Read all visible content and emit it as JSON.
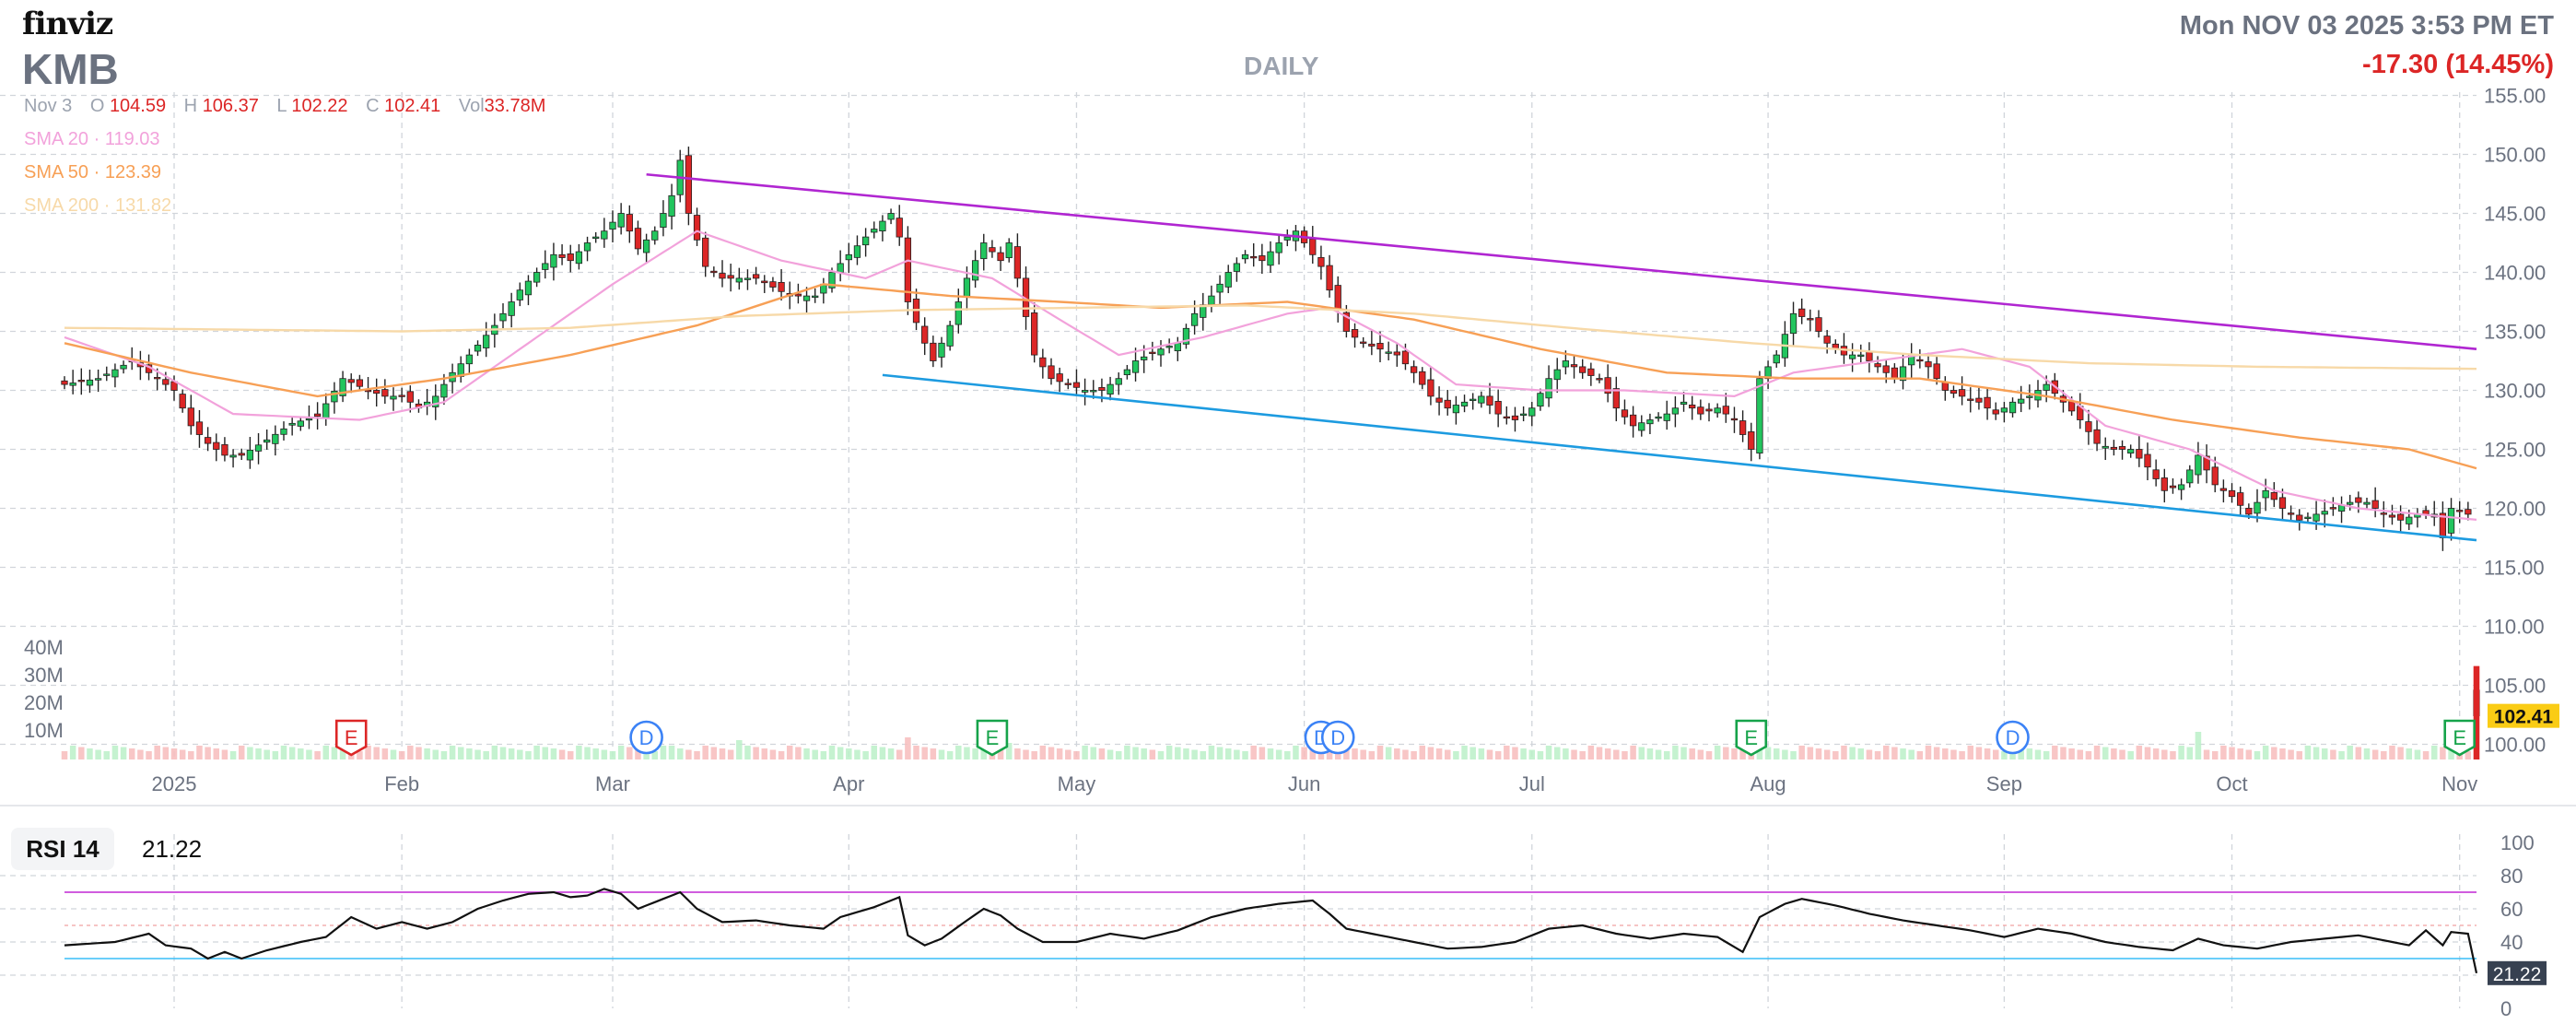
{
  "header": {
    "logo": "finviz",
    "ticker": "KMB",
    "timeframe": "DAILY",
    "datetime": "Mon NOV 03 2025 3:53 PM ET",
    "change": "-17.30 (14.45%)"
  },
  "ohlc": {
    "date": "Nov 3",
    "o_label": "O",
    "o": "104.59",
    "h_label": "H",
    "h": "106.37",
    "l_label": "L",
    "l": "102.22",
    "c_label": "C",
    "c": "102.41",
    "vol_label": "Vol",
    "vol": "33.78M"
  },
  "sma": {
    "sma20": {
      "label": "SMA 20",
      "value": "119.03",
      "color": "#f2a2db"
    },
    "sma50": {
      "label": "SMA 50",
      "value": "123.39",
      "color": "#f7a056"
    },
    "sma200": {
      "label": "SMA 200",
      "value": "131.82",
      "color": "#f7d9a8"
    },
    "sep": "·"
  },
  "rsi": {
    "label": "RSI 14",
    "value": "21.22"
  },
  "colors": {
    "up": "#22c55e",
    "down": "#dc2626",
    "grid": "#d1d5db",
    "axis_text": "#6b7280",
    "trend_upper": "#b026d1",
    "trend_lower": "#1d9be0",
    "last_price_bg": "#facc15",
    "earnings": "#dc2626",
    "earnings_up": "#16a34a",
    "dividend": "#3b82f6"
  },
  "chart_data": {
    "type": "candlestick",
    "price_axis": {
      "ticks": [
        "155.00",
        "150.00",
        "145.00",
        "140.00",
        "135.00",
        "130.00",
        "125.00",
        "120.00",
        "115.00",
        "110.00",
        "105.00",
        "100.00"
      ],
      "range": [
        97.8,
        155
      ]
    },
    "volume_axis": {
      "ticks": [
        "40M",
        "30M",
        "20M",
        "10M"
      ]
    },
    "x_axis": {
      "labels": [
        "2025",
        "Feb",
        "Mar",
        "Apr",
        "May",
        "Jun",
        "Jul",
        "Aug",
        "Sep",
        "Oct",
        "Nov"
      ]
    },
    "last_price": "102.41",
    "start_date": "2024-12-18",
    "anchors": [
      [
        0,
        130.5
      ],
      [
        4,
        131
      ],
      [
        8,
        132.5
      ],
      [
        11,
        131
      ],
      [
        13,
        130
      ],
      [
        15,
        127
      ],
      [
        17,
        125.5
      ],
      [
        19,
        124.5
      ],
      [
        21,
        124.5
      ],
      [
        24,
        125.8
      ],
      [
        27,
        127.2
      ],
      [
        30,
        127.8
      ],
      [
        33,
        131
      ],
      [
        36,
        130
      ],
      [
        38,
        129.5
      ],
      [
        40,
        129.5
      ],
      [
        42,
        128.5
      ],
      [
        44,
        129.5
      ],
      [
        46,
        131.5
      ],
      [
        48,
        133
      ],
      [
        51,
        135.5
      ],
      [
        54,
        138.5
      ],
      [
        56,
        140
      ],
      [
        58,
        141.5
      ],
      [
        60,
        141
      ],
      [
        62,
        142.5
      ],
      [
        64,
        143.5
      ],
      [
        66,
        145
      ],
      [
        68,
        142
      ],
      [
        70,
        143.5
      ],
      [
        72,
        146.5
      ],
      [
        73,
        149.5
      ],
      [
        74,
        145
      ],
      [
        76,
        140.5
      ],
      [
        78,
        139.5
      ],
      [
        82,
        139.5
      ],
      [
        86,
        138
      ],
      [
        89,
        138
      ],
      [
        91,
        140
      ],
      [
        93,
        141.5
      ],
      [
        95,
        143
      ],
      [
        98,
        145
      ],
      [
        99,
        143
      ],
      [
        100,
        137.5
      ],
      [
        102,
        134
      ],
      [
        103,
        132.5
      ],
      [
        105,
        135.5
      ],
      [
        107,
        139.5
      ],
      [
        109,
        142.5
      ],
      [
        111,
        141
      ],
      [
        112,
        142.5
      ],
      [
        113,
        139.5
      ],
      [
        115,
        133
      ],
      [
        117,
        131
      ],
      [
        119,
        130.5
      ],
      [
        121,
        130
      ],
      [
        123,
        130
      ],
      [
        125,
        131
      ],
      [
        127,
        132.5
      ],
      [
        130,
        133.5
      ],
      [
        132,
        134
      ],
      [
        134,
        136.5
      ],
      [
        136,
        138
      ],
      [
        138,
        140
      ],
      [
        140,
        141.5
      ],
      [
        142,
        141
      ],
      [
        144,
        142.5
      ],
      [
        146,
        143.5
      ],
      [
        147,
        142.5
      ],
      [
        149,
        140.5
      ],
      [
        150,
        138.5
      ],
      [
        152,
        135
      ],
      [
        154,
        134
      ],
      [
        156,
        133.5
      ],
      [
        158,
        133
      ],
      [
        160,
        131.5
      ],
      [
        162,
        129.5
      ],
      [
        164,
        128.5
      ],
      [
        166,
        129
      ],
      [
        168,
        129.5
      ],
      [
        170,
        128
      ],
      [
        172,
        127.5
      ],
      [
        174,
        128.5
      ],
      [
        176,
        131
      ],
      [
        178,
        132.5
      ],
      [
        180,
        131.5
      ],
      [
        182,
        131
      ],
      [
        184,
        128.5
      ],
      [
        186,
        127
      ],
      [
        188,
        127.5
      ],
      [
        190,
        128
      ],
      [
        192,
        129
      ],
      [
        194,
        128
      ],
      [
        196,
        128.5
      ],
      [
        198,
        127.5
      ],
      [
        200,
        125
      ],
      [
        201,
        131
      ],
      [
        203,
        133
      ],
      [
        205,
        136.5
      ],
      [
        207,
        136
      ],
      [
        209,
        134
      ],
      [
        211,
        133
      ],
      [
        213,
        133
      ],
      [
        215,
        132
      ],
      [
        217,
        131
      ],
      [
        219,
        133
      ],
      [
        221,
        132
      ],
      [
        223,
        130
      ],
      [
        225,
        129.5
      ],
      [
        227,
        129
      ],
      [
        229,
        128
      ],
      [
        231,
        129
      ],
      [
        233,
        129.5
      ],
      [
        235,
        130.5
      ],
      [
        237,
        129
      ],
      [
        239,
        127.5
      ],
      [
        241,
        125.5
      ],
      [
        243,
        125
      ],
      [
        245,
        125
      ],
      [
        247,
        123.5
      ],
      [
        249,
        121.5
      ],
      [
        251,
        122
      ],
      [
        253,
        124.5
      ],
      [
        255,
        122
      ],
      [
        257,
        121
      ],
      [
        259,
        119.5
      ],
      [
        261,
        121.5
      ],
      [
        263,
        120
      ],
      [
        265,
        119
      ],
      [
        267,
        119.5
      ],
      [
        269,
        120
      ],
      [
        271,
        120.5
      ],
      [
        273,
        120.5
      ],
      [
        275,
        119.5
      ],
      [
        277,
        119
      ],
      [
        279,
        119.5
      ],
      [
        281,
        119.5
      ],
      [
        282,
        117.5
      ],
      [
        283,
        120
      ],
      [
        285,
        119.5
      ],
      [
        286,
        104.59
      ]
    ],
    "last_candle": {
      "date": "Nov 3",
      "open": 104.59,
      "high": 106.37,
      "low": 102.22,
      "close": 102.41
    },
    "sma_sets": {
      "sma20": [
        [
          0,
          134.5
        ],
        [
          10,
          132
        ],
        [
          20,
          128
        ],
        [
          35,
          127.5
        ],
        [
          45,
          129
        ],
        [
          55,
          134
        ],
        [
          65,
          139
        ],
        [
          75,
          143.5
        ],
        [
          85,
          141
        ],
        [
          95,
          139.5
        ],
        [
          100,
          141
        ],
        [
          110,
          139.5
        ],
        [
          118,
          136
        ],
        [
          125,
          133
        ],
        [
          135,
          134.5
        ],
        [
          145,
          136.5
        ],
        [
          150,
          137
        ],
        [
          158,
          134
        ],
        [
          165,
          130.5
        ],
        [
          175,
          130
        ],
        [
          185,
          130
        ],
        [
          198,
          129.5
        ],
        [
          205,
          131.5
        ],
        [
          215,
          132.5
        ],
        [
          225,
          133.5
        ],
        [
          233,
          132
        ],
        [
          242,
          127
        ],
        [
          252,
          125
        ],
        [
          262,
          121.5
        ],
        [
          272,
          120
        ],
        [
          286,
          119.03
        ]
      ],
      "sma50": [
        [
          0,
          134
        ],
        [
          15,
          131.5
        ],
        [
          30,
          129.5
        ],
        [
          45,
          131
        ],
        [
          60,
          133
        ],
        [
          75,
          135.5
        ],
        [
          90,
          139
        ],
        [
          105,
          138
        ],
        [
          118,
          137.5
        ],
        [
          130,
          137
        ],
        [
          145,
          137.5
        ],
        [
          160,
          136
        ],
        [
          175,
          133.5
        ],
        [
          190,
          131.5
        ],
        [
          205,
          131
        ],
        [
          220,
          131
        ],
        [
          235,
          129.5
        ],
        [
          250,
          127.5
        ],
        [
          265,
          126
        ],
        [
          278,
          125
        ],
        [
          286,
          123.39
        ]
      ],
      "sma200": [
        [
          0,
          135.3
        ],
        [
          40,
          135
        ],
        [
          60,
          135.3
        ],
        [
          80,
          136.3
        ],
        [
          100,
          136.8
        ],
        [
          120,
          137
        ],
        [
          140,
          137.2
        ],
        [
          160,
          136.5
        ],
        [
          180,
          135.2
        ],
        [
          200,
          134
        ],
        [
          220,
          133
        ],
        [
          240,
          132.3
        ],
        [
          260,
          132
        ],
        [
          286,
          131.82
        ]
      ]
    },
    "trendlines": [
      {
        "name": "upper",
        "from": [
          69,
          148.3
        ],
        "to": [
          286,
          133.5
        ]
      },
      {
        "name": "lower",
        "from": [
          97,
          131.3
        ],
        "to": [
          286,
          117.3
        ]
      }
    ],
    "volume_baseline_m": 3,
    "volume_spikes": [
      [
        72,
        5
      ],
      [
        80,
        7
      ],
      [
        100,
        8
      ],
      [
        112,
        6
      ],
      [
        150,
        8
      ],
      [
        201,
        10
      ],
      [
        253,
        10
      ],
      [
        286,
        33.78
      ]
    ],
    "events": [
      {
        "type": "E",
        "style": "red",
        "i": 34
      },
      {
        "type": "D",
        "i": 69
      },
      {
        "type": "E",
        "style": "green",
        "i": 110
      },
      {
        "type": "D",
        "i": 149
      },
      {
        "type": "D",
        "i": 151
      },
      {
        "type": "E",
        "style": "green",
        "i": 200
      },
      {
        "type": "D",
        "i": 231
      },
      {
        "type": "E",
        "style": "green",
        "i": 284
      }
    ],
    "rsi": {
      "ticks": [
        "100",
        "80",
        "60",
        "40",
        "20",
        "0"
      ],
      "levels": {
        "overbought": 70,
        "oversold": 30
      },
      "anchors": [
        [
          0,
          38
        ],
        [
          6,
          40
        ],
        [
          10,
          45
        ],
        [
          12,
          38
        ],
        [
          15,
          36
        ],
        [
          17,
          30
        ],
        [
          19,
          34
        ],
        [
          21,
          30
        ],
        [
          24,
          35
        ],
        [
          28,
          40
        ],
        [
          31,
          43
        ],
        [
          34,
          55
        ],
        [
          37,
          48
        ],
        [
          40,
          52
        ],
        [
          43,
          48
        ],
        [
          46,
          52
        ],
        [
          49,
          60
        ],
        [
          52,
          65
        ],
        [
          55,
          69
        ],
        [
          58,
          70
        ],
        [
          60,
          67
        ],
        [
          62,
          68
        ],
        [
          64,
          72
        ],
        [
          66,
          69
        ],
        [
          68,
          60
        ],
        [
          70,
          64
        ],
        [
          73,
          70
        ],
        [
          75,
          60
        ],
        [
          78,
          52
        ],
        [
          82,
          53
        ],
        [
          86,
          50
        ],
        [
          90,
          48
        ],
        [
          92,
          55
        ],
        [
          96,
          61
        ],
        [
          99,
          67
        ],
        [
          100,
          44
        ],
        [
          102,
          38
        ],
        [
          104,
          42
        ],
        [
          107,
          53
        ],
        [
          109,
          60
        ],
        [
          111,
          56
        ],
        [
          113,
          48
        ],
        [
          116,
          40
        ],
        [
          120,
          40
        ],
        [
          124,
          45
        ],
        [
          128,
          42
        ],
        [
          132,
          47
        ],
        [
          136,
          55
        ],
        [
          140,
          60
        ],
        [
          144,
          63
        ],
        [
          148,
          65
        ],
        [
          150,
          57
        ],
        [
          152,
          48
        ],
        [
          156,
          44
        ],
        [
          160,
          40
        ],
        [
          164,
          36
        ],
        [
          168,
          37
        ],
        [
          172,
          40
        ],
        [
          176,
          48
        ],
        [
          180,
          50
        ],
        [
          184,
          45
        ],
        [
          188,
          42
        ],
        [
          192,
          45
        ],
        [
          196,
          43
        ],
        [
          199,
          34
        ],
        [
          201,
          55
        ],
        [
          204,
          63
        ],
        [
          206,
          66
        ],
        [
          210,
          62
        ],
        [
          214,
          57
        ],
        [
          218,
          53
        ],
        [
          222,
          50
        ],
        [
          226,
          47
        ],
        [
          230,
          43
        ],
        [
          234,
          48
        ],
        [
          238,
          45
        ],
        [
          242,
          40
        ],
        [
          246,
          37
        ],
        [
          250,
          35
        ],
        [
          253,
          42
        ],
        [
          256,
          38
        ],
        [
          260,
          36
        ],
        [
          264,
          40
        ],
        [
          268,
          42
        ],
        [
          272,
          44
        ],
        [
          276,
          40
        ],
        [
          278,
          38
        ],
        [
          280,
          47
        ],
        [
          282,
          38
        ],
        [
          283,
          46
        ],
        [
          285,
          45
        ],
        [
          286,
          21.22
        ]
      ]
    }
  }
}
